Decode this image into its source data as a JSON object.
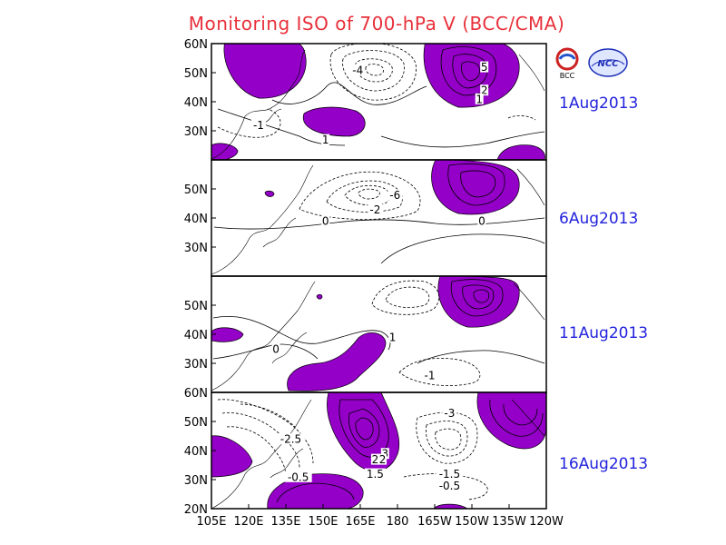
{
  "title": "Monitoring ISO of 700-hPa V (BCC/CMA)",
  "colors": {
    "positive_fill": "#9400c8",
    "title": "#e8303a",
    "date": "#2222dd",
    "contour": "#000000"
  },
  "logos": {
    "left_text": "BCC",
    "right_text": "NCC"
  },
  "chart_data": {
    "type": "contour-map-panels",
    "variable": "700-hPa V (intraseasonal oscillation)",
    "x_ticks": [
      "105E",
      "120E",
      "135E",
      "150E",
      "165E",
      "180",
      "165W",
      "150W",
      "135W",
      "120W"
    ],
    "x_values": [
      105,
      120,
      135,
      150,
      165,
      180,
      195,
      210,
      225,
      240
    ],
    "xlim": [
      105,
      240
    ],
    "shading": "values above 0 shaded purple",
    "panels": [
      {
        "date": "1Aug2013",
        "ylim": [
          20,
          60
        ],
        "y_ticks": [
          "30N",
          "40N",
          "50N",
          "60N"
        ],
        "contour_labels": [
          {
            "text": "-4",
            "lon": 164,
            "lat": 51
          },
          {
            "text": "5",
            "lon": 215,
            "lat": 52
          },
          {
            "text": "2",
            "lon": 215,
            "lat": 44
          },
          {
            "text": "1",
            "lon": 213,
            "lat": 41
          },
          {
            "text": "-1",
            "lon": 124,
            "lat": 32
          },
          {
            "text": "1",
            "lon": 151,
            "lat": 27
          }
        ]
      },
      {
        "date": "6Aug2013",
        "ylim": [
          20,
          60
        ],
        "y_ticks": [
          "30N",
          "40N",
          "50N"
        ],
        "contour_labels": [
          {
            "text": "-6",
            "lon": 179,
            "lat": 48
          },
          {
            "text": "-2",
            "lon": 171,
            "lat": 43
          },
          {
            "text": "0",
            "lon": 151,
            "lat": 39
          },
          {
            "text": "0",
            "lon": 214,
            "lat": 39
          }
        ]
      },
      {
        "date": "11Aug2013",
        "ylim": [
          20,
          60
        ],
        "y_ticks": [
          "30N",
          "40N",
          "50N"
        ],
        "contour_labels": [
          {
            "text": "1",
            "lon": 178,
            "lat": 39
          },
          {
            "text": "0",
            "lon": 131,
            "lat": 35
          },
          {
            "text": "-1",
            "lon": 193,
            "lat": 26
          }
        ]
      },
      {
        "date": "16Aug2013",
        "ylim": [
          20,
          60
        ],
        "y_ticks": [
          "20N",
          "30N",
          "40N",
          "50N",
          "60N"
        ],
        "contour_labels": [
          {
            "text": "-2.5",
            "lon": 137,
            "lat": 44
          },
          {
            "text": "-0.5",
            "lon": 140,
            "lat": 31
          },
          {
            "text": "3",
            "lon": 175,
            "lat": 39
          },
          {
            "text": "2",
            "lon": 171,
            "lat": 37
          },
          {
            "text": "2",
            "lon": 174,
            "lat": 37
          },
          {
            "text": "1.5",
            "lon": 171,
            "lat": 32
          },
          {
            "text": "-3",
            "lon": 201,
            "lat": 53
          },
          {
            "text": "-1.5",
            "lon": 201,
            "lat": 32
          },
          {
            "text": "-0.5",
            "lon": 201,
            "lat": 28
          }
        ]
      }
    ]
  }
}
